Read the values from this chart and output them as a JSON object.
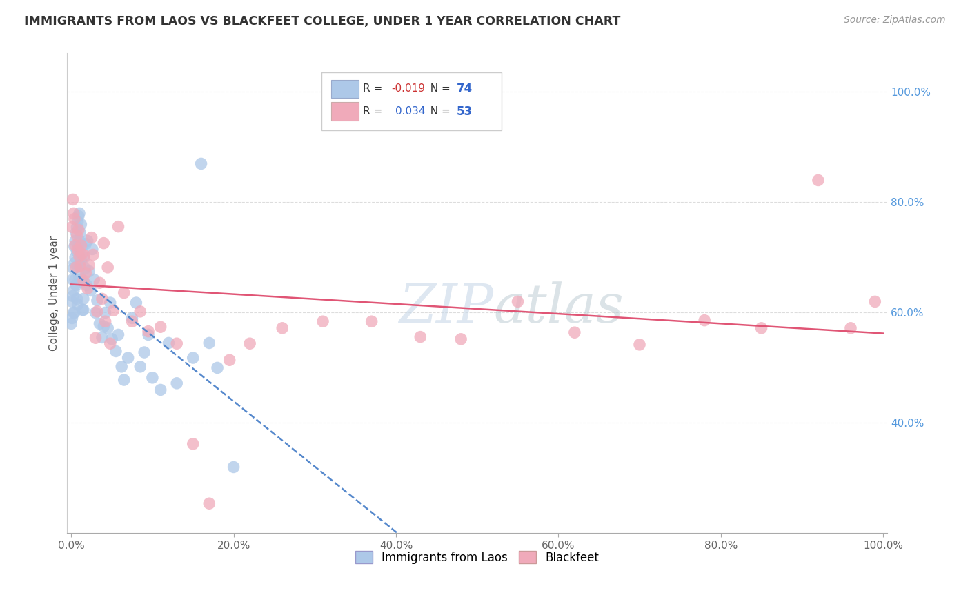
{
  "title": "IMMIGRANTS FROM LAOS VS BLACKFEET COLLEGE, UNDER 1 YEAR CORRELATION CHART",
  "source": "Source: ZipAtlas.com",
  "ylabel": "College, Under 1 year",
  "legend_labels": [
    "Immigrants from Laos",
    "Blackfeet"
  ],
  "blue_R": "-0.019",
  "blue_N": "74",
  "pink_R": "0.034",
  "pink_N": "53",
  "blue_color": "#adc8e8",
  "pink_color": "#f0aaba",
  "blue_line_color": "#5588cc",
  "pink_line_color": "#e05575",
  "watermark_color": "#c8d8e8",
  "blue_points_x": [
    0.0,
    0.001,
    0.001,
    0.002,
    0.002,
    0.003,
    0.003,
    0.003,
    0.004,
    0.004,
    0.004,
    0.005,
    0.005,
    0.005,
    0.006,
    0.006,
    0.007,
    0.007,
    0.007,
    0.008,
    0.008,
    0.008,
    0.009,
    0.009,
    0.01,
    0.01,
    0.01,
    0.011,
    0.011,
    0.012,
    0.012,
    0.013,
    0.013,
    0.014,
    0.014,
    0.015,
    0.015,
    0.016,
    0.017,
    0.018,
    0.019,
    0.02,
    0.022,
    0.024,
    0.026,
    0.028,
    0.03,
    0.032,
    0.035,
    0.038,
    0.04,
    0.042,
    0.045,
    0.048,
    0.05,
    0.055,
    0.058,
    0.062,
    0.065,
    0.07,
    0.075,
    0.08,
    0.085,
    0.09,
    0.095,
    0.1,
    0.11,
    0.12,
    0.13,
    0.15,
    0.16,
    0.17,
    0.18,
    0.2
  ],
  "blue_points_y": [
    0.58,
    0.62,
    0.59,
    0.66,
    0.63,
    0.68,
    0.64,
    0.6,
    0.72,
    0.69,
    0.6,
    0.73,
    0.7,
    0.66,
    0.745,
    0.65,
    0.755,
    0.71,
    0.625,
    0.765,
    0.685,
    0.615,
    0.775,
    0.72,
    0.78,
    0.73,
    0.665,
    0.745,
    0.685,
    0.76,
    0.695,
    0.72,
    0.66,
    0.655,
    0.605,
    0.625,
    0.605,
    0.7,
    0.68,
    0.725,
    0.65,
    0.73,
    0.675,
    0.64,
    0.715,
    0.66,
    0.6,
    0.622,
    0.58,
    0.555,
    0.575,
    0.6,
    0.572,
    0.618,
    0.552,
    0.53,
    0.56,
    0.502,
    0.478,
    0.518,
    0.59,
    0.618,
    0.502,
    0.528,
    0.56,
    0.482,
    0.46,
    0.545,
    0.472,
    0.518,
    0.87,
    0.545,
    0.5,
    0.32
  ],
  "pink_points_x": [
    0.001,
    0.002,
    0.003,
    0.004,
    0.005,
    0.006,
    0.007,
    0.008,
    0.009,
    0.01,
    0.011,
    0.012,
    0.013,
    0.015,
    0.016,
    0.018,
    0.02,
    0.022,
    0.025,
    0.027,
    0.03,
    0.032,
    0.035,
    0.038,
    0.04,
    0.042,
    0.045,
    0.048,
    0.052,
    0.058,
    0.065,
    0.075,
    0.085,
    0.095,
    0.11,
    0.13,
    0.15,
    0.17,
    0.195,
    0.22,
    0.26,
    0.31,
    0.37,
    0.43,
    0.48,
    0.55,
    0.62,
    0.7,
    0.78,
    0.85,
    0.92,
    0.96,
    0.99
  ],
  "pink_points_y": [
    0.755,
    0.805,
    0.78,
    0.77,
    0.722,
    0.682,
    0.74,
    0.714,
    0.75,
    0.702,
    0.684,
    0.722,
    0.706,
    0.658,
    0.704,
    0.672,
    0.644,
    0.686,
    0.736,
    0.705,
    0.554,
    0.602,
    0.654,
    0.625,
    0.726,
    0.584,
    0.682,
    0.544,
    0.604,
    0.756,
    0.636,
    0.584,
    0.602,
    0.566,
    0.574,
    0.544,
    0.362,
    0.254,
    0.514,
    0.544,
    0.572,
    0.584,
    0.584,
    0.556,
    0.552,
    0.62,
    0.564,
    0.542,
    0.586,
    0.572,
    0.84,
    0.572,
    0.62
  ]
}
